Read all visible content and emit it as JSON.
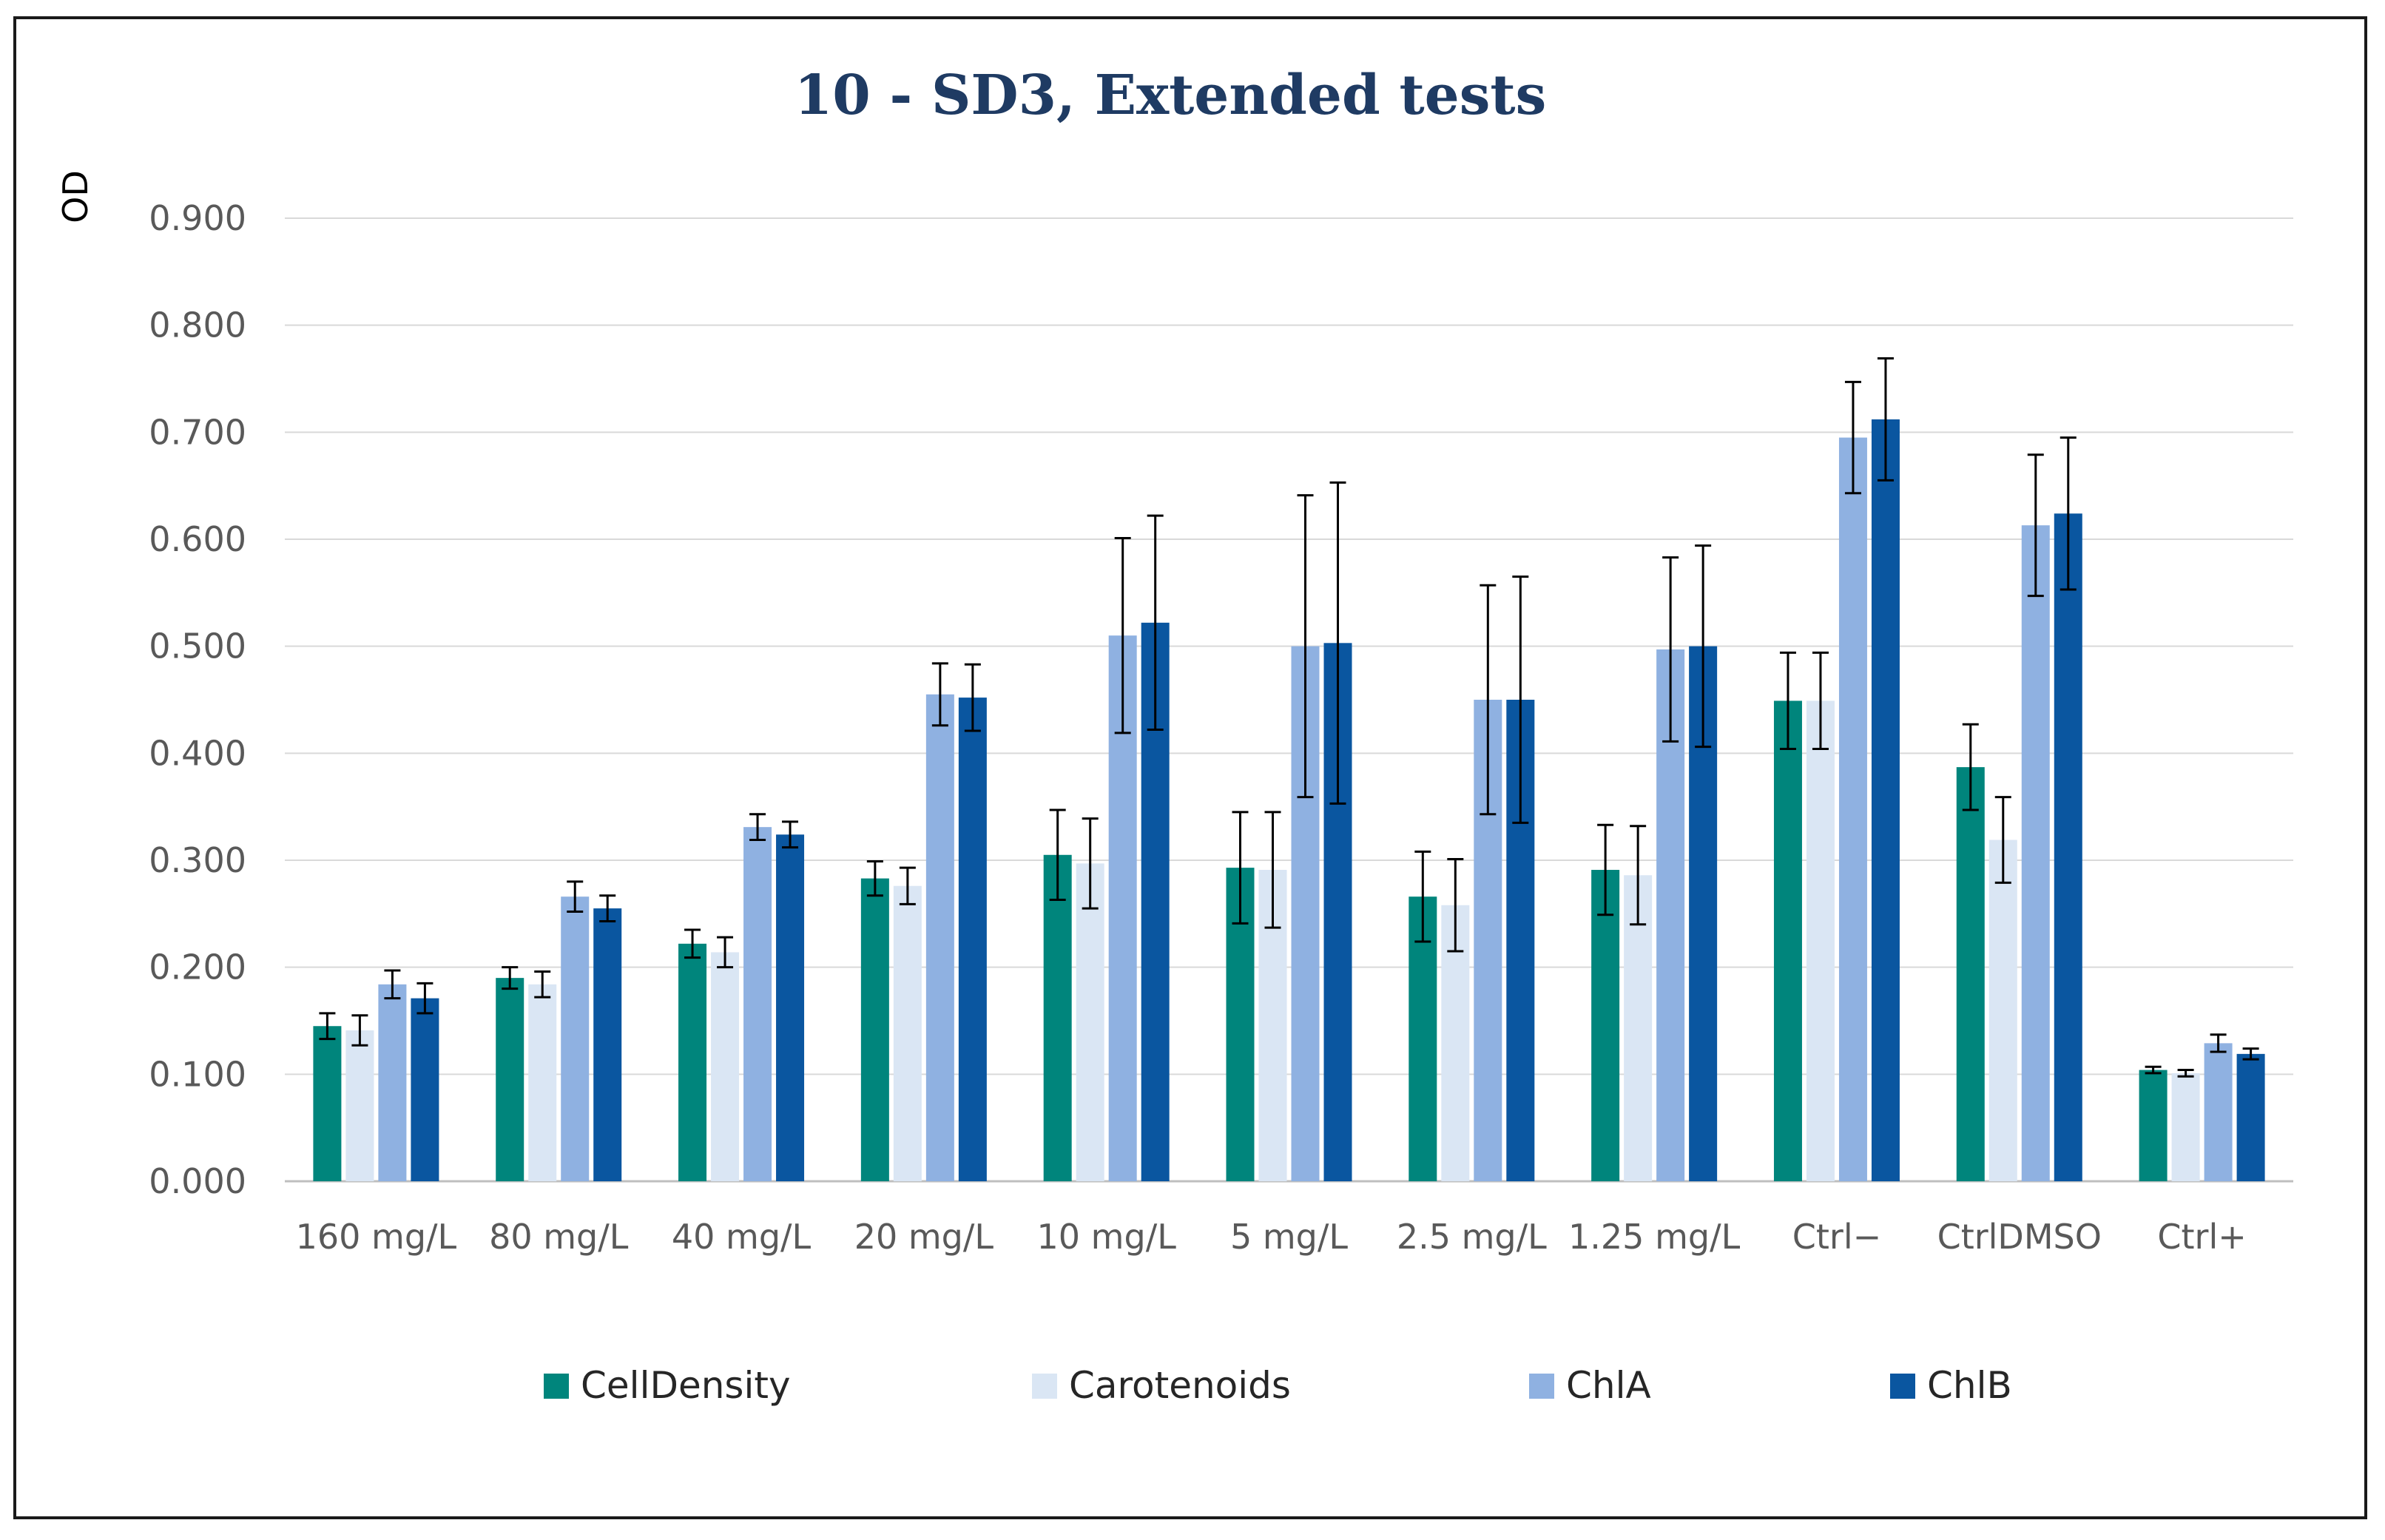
{
  "chart_data": {
    "type": "bar",
    "title": "10 - SD3, Extended tests",
    "xlabel": "",
    "ylabel": "OD",
    "ylim": [
      0,
      0.9
    ],
    "yticks": [
      "0.000",
      "0.100",
      "0.200",
      "0.300",
      "0.400",
      "0.500",
      "0.600",
      "0.700",
      "0.800",
      "0.900"
    ],
    "grid": true,
    "legend_position": "bottom",
    "categories": [
      "160 mg/L",
      "80 mg/L",
      "40 mg/L",
      "20 mg/L",
      "10 mg/L",
      "5 mg/L",
      "2.5 mg/L",
      "1.25 mg/L",
      "Ctrl−",
      "CtrlDMSO",
      "Ctrl+"
    ],
    "series": [
      {
        "name": "CellDensity",
        "color": "#00857c",
        "values": [
          0.145,
          0.19,
          0.222,
          0.283,
          0.305,
          0.293,
          0.266,
          0.291,
          0.449,
          0.387,
          0.104
        ],
        "errors": [
          0.012,
          0.01,
          0.013,
          0.016,
          0.042,
          0.052,
          0.042,
          0.042,
          0.045,
          0.04,
          0.003
        ]
      },
      {
        "name": "Carotenoids",
        "color": "#dae6f4",
        "values": [
          0.141,
          0.184,
          0.214,
          0.276,
          0.297,
          0.291,
          0.258,
          0.286,
          0.449,
          0.319,
          0.101
        ],
        "errors": [
          0.014,
          0.012,
          0.014,
          0.017,
          0.042,
          0.054,
          0.043,
          0.046,
          0.045,
          0.04,
          0.003
        ]
      },
      {
        "name": "ChlA",
        "color": "#8fb1e1",
        "values": [
          0.184,
          0.266,
          0.331,
          0.455,
          0.51,
          0.5,
          0.45,
          0.497,
          0.695,
          0.613,
          0.129
        ],
        "errors": [
          0.013,
          0.014,
          0.012,
          0.029,
          0.091,
          0.141,
          0.107,
          0.086,
          0.052,
          0.066,
          0.008
        ]
      },
      {
        "name": "ChlB",
        "color": "#0a56a0",
        "values": [
          0.171,
          0.255,
          0.324,
          0.452,
          0.522,
          0.503,
          0.45,
          0.5,
          0.712,
          0.624,
          0.119
        ],
        "errors": [
          0.014,
          0.012,
          0.012,
          0.031,
          0.1,
          0.15,
          0.115,
          0.094,
          0.057,
          0.071,
          0.005
        ]
      }
    ]
  }
}
